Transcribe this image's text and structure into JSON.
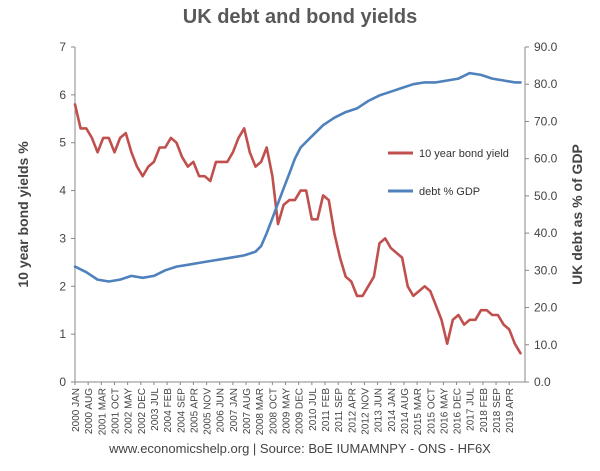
{
  "chart_data": {
    "type": "line",
    "title": "UK debt and bond yields",
    "footer": "www.economicshelp.org | Source: BoE IUMAMNPY - ONS - HF6X",
    "ylabel": "10 year bond yields %",
    "ylabel_right": "UK debt as % of GDP",
    "ylim": [
      0,
      7
    ],
    "ylim_right": [
      0,
      90
    ],
    "yticks": [
      "0",
      "1",
      "2",
      "3",
      "4",
      "5",
      "6",
      "7"
    ],
    "yticks_right": [
      "0.0",
      "10.0",
      "20.0",
      "30.0",
      "40.0",
      "50.0",
      "60.0",
      "70.0",
      "80.0",
      "90.0"
    ],
    "x_tick_labels": [
      "2000 JAN",
      "2000 AUG",
      "2001 MAR",
      "2001 OCT",
      "2002 MAY",
      "2002 DEC",
      "2003 JUL",
      "2004 FEB",
      "2004 SEP",
      "2005 APR",
      "2005 NOV",
      "2006 JUN",
      "2007 JAN",
      "2007 AUG",
      "2008 MAR",
      "2008 OCT",
      "2009 MAY",
      "2009 DEC",
      "2010 JUL",
      "2011 FEB",
      "2011 SEP",
      "2012 APR",
      "2012 NOV",
      "2013 JUN",
      "2014 JAN",
      "2014 AUG",
      "2015 MAR",
      "2015 OCT",
      "2016 MAY",
      "2016 DEC",
      "2017 JUL",
      "2018 FEB",
      "2018 SEP",
      "2019 APR"
    ],
    "legend_position": "right, inside plot",
    "grid": false,
    "series": [
      {
        "name": "10 year bond yield",
        "axis": "left",
        "color": "#c0504d",
        "x": [
          2000.0,
          2000.25,
          2000.5,
          2000.75,
          2001.0,
          2001.25,
          2001.5,
          2001.75,
          2002.0,
          2002.25,
          2002.5,
          2002.75,
          2003.0,
          2003.25,
          2003.5,
          2003.75,
          2004.0,
          2004.25,
          2004.5,
          2004.75,
          2005.0,
          2005.25,
          2005.5,
          2005.75,
          2006.0,
          2006.25,
          2006.5,
          2006.75,
          2007.0,
          2007.25,
          2007.5,
          2007.75,
          2008.0,
          2008.25,
          2008.5,
          2008.75,
          2009.0,
          2009.25,
          2009.5,
          2009.75,
          2010.0,
          2010.25,
          2010.5,
          2010.75,
          2011.0,
          2011.25,
          2011.5,
          2011.75,
          2012.0,
          2012.25,
          2012.5,
          2012.75,
          2013.0,
          2013.25,
          2013.5,
          2013.75,
          2014.0,
          2014.25,
          2014.5,
          2014.75,
          2015.0,
          2015.25,
          2015.5,
          2015.75,
          2016.0,
          2016.25,
          2016.5,
          2016.75,
          2017.0,
          2017.25,
          2017.5,
          2017.75,
          2018.0,
          2018.25,
          2018.5,
          2018.75,
          2019.0,
          2019.25,
          2019.5,
          2019.75
        ],
        "values": [
          5.8,
          5.3,
          5.3,
          5.1,
          4.8,
          5.1,
          5.1,
          4.8,
          5.1,
          5.2,
          4.8,
          4.5,
          4.3,
          4.5,
          4.6,
          4.9,
          4.9,
          5.1,
          5.0,
          4.7,
          4.5,
          4.6,
          4.3,
          4.3,
          4.2,
          4.6,
          4.6,
          4.6,
          4.8,
          5.1,
          5.3,
          4.8,
          4.5,
          4.6,
          4.9,
          4.3,
          3.3,
          3.7,
          3.8,
          3.8,
          4.0,
          4.0,
          3.4,
          3.4,
          3.9,
          3.8,
          3.1,
          2.6,
          2.2,
          2.1,
          1.8,
          1.8,
          2.0,
          2.2,
          2.9,
          3.0,
          2.8,
          2.7,
          2.6,
          2.0,
          1.8,
          1.9,
          2.0,
          1.9,
          1.6,
          1.3,
          0.8,
          1.3,
          1.4,
          1.2,
          1.3,
          1.3,
          1.5,
          1.5,
          1.4,
          1.4,
          1.2,
          1.1,
          0.8,
          0.6
        ]
      },
      {
        "name": "debt % GDP",
        "axis": "right",
        "color": "#4f81bd",
        "x": [
          2000.0,
          2000.5,
          2001.0,
          2001.5,
          2002.0,
          2002.5,
          2003.0,
          2003.5,
          2004.0,
          2004.5,
          2005.0,
          2005.5,
          2006.0,
          2006.5,
          2007.0,
          2007.5,
          2008.0,
          2008.25,
          2008.5,
          2008.75,
          2009.0,
          2009.25,
          2009.5,
          2009.75,
          2010.0,
          2010.5,
          2011.0,
          2011.5,
          2012.0,
          2012.5,
          2013.0,
          2013.5,
          2014.0,
          2014.5,
          2015.0,
          2015.5,
          2016.0,
          2016.5,
          2017.0,
          2017.5,
          2018.0,
          2018.5,
          2019.0,
          2019.5,
          2019.75
        ],
        "values": [
          31.0,
          29.5,
          27.5,
          27.0,
          27.5,
          28.5,
          28.0,
          28.5,
          30.0,
          31.0,
          31.5,
          32.0,
          32.5,
          33.0,
          33.5,
          34.0,
          35.0,
          36.5,
          40.0,
          44.0,
          48.0,
          52.0,
          56.0,
          60.0,
          63.0,
          66.0,
          69.0,
          71.0,
          72.5,
          73.5,
          75.5,
          77.0,
          78.0,
          79.0,
          80.0,
          80.5,
          80.5,
          81.0,
          81.5,
          83.0,
          82.5,
          81.5,
          81.0,
          80.5,
          80.5
        ]
      }
    ]
  }
}
